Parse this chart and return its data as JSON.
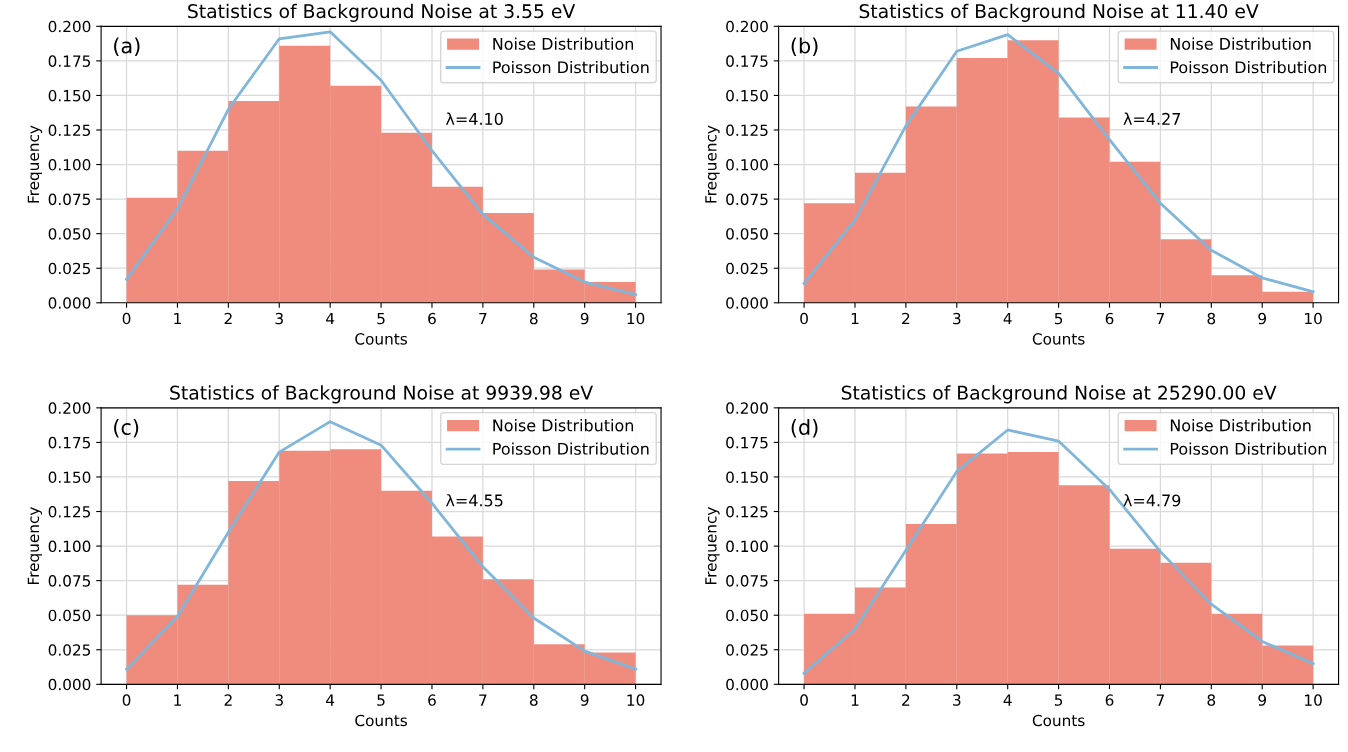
{
  "chart_data": [
    {
      "type": "histogram",
      "title": "Statistics of Background Noise at 3.55 eV",
      "xlabel": "Counts",
      "ylabel": "Frequency",
      "annotations": [
        "(a)",
        "λ=4.10"
      ],
      "bins": [
        0,
        1,
        2,
        3,
        4,
        5,
        6,
        7,
        8,
        9,
        10
      ],
      "series": [
        {
          "name": "Noise Distribution",
          "color": "#f08c7e",
          "values": [
            0.076,
            0.11,
            0.146,
            0.186,
            0.157,
            0.123,
            0.084,
            0.065,
            0.024,
            0.015
          ]
        },
        {
          "name": "Poisson Distribution",
          "type": "line",
          "color": "#7fb6d9",
          "x": [
            0,
            1,
            2,
            3,
            4,
            5,
            6,
            7,
            8,
            9,
            10
          ],
          "values": [
            0.017,
            0.068,
            0.14,
            0.191,
            0.196,
            0.161,
            0.11,
            0.064,
            0.033,
            0.015,
            0.006
          ]
        }
      ],
      "xlim": [
        -0.5,
        10.5
      ],
      "xticks": [
        0,
        1,
        2,
        3,
        4,
        5,
        6,
        7,
        8,
        9,
        10
      ],
      "ylim": [
        0,
        0.2
      ],
      "yticks": [
        {
          "value": 0,
          "label": "0.000"
        },
        {
          "value": 0.025,
          "label": "0.025"
        },
        {
          "value": 0.05,
          "label": "0.050"
        },
        {
          "value": 0.075,
          "label": "0.075"
        },
        {
          "value": 0.1,
          "label": "0.100"
        },
        {
          "value": 0.125,
          "label": "0.125"
        },
        {
          "value": 0.15,
          "label": "0.150"
        },
        {
          "value": 0.175,
          "label": "0.175"
        },
        {
          "value": 0.2,
          "label": "0.200"
        }
      ],
      "grid": true,
      "legend": "top right"
    },
    {
      "type": "histogram",
      "title": "Statistics of Background Noise at 11.40 eV",
      "xlabel": "Counts",
      "ylabel": "Frequency",
      "annotations": [
        "(b)",
        "λ=4.27"
      ],
      "bins": [
        0,
        1,
        2,
        3,
        4,
        5,
        6,
        7,
        8,
        9,
        10
      ],
      "series": [
        {
          "name": "Noise Distribution",
          "color": "#f08c7e",
          "values": [
            0.072,
            0.094,
            0.142,
            0.177,
            0.19,
            0.134,
            0.102,
            0.046,
            0.02,
            0.008
          ]
        },
        {
          "name": "Poisson Distribution",
          "type": "line",
          "color": "#7fb6d9",
          "x": [
            0,
            1,
            2,
            3,
            4,
            5,
            6,
            7,
            8,
            9,
            10
          ],
          "values": [
            0.014,
            0.06,
            0.128,
            0.182,
            0.194,
            0.166,
            0.118,
            0.072,
            0.038,
            0.018,
            0.008
          ]
        }
      ],
      "xlim": [
        -0.5,
        10.5
      ],
      "xticks": [
        0,
        1,
        2,
        3,
        4,
        5,
        6,
        7,
        8,
        9,
        10
      ],
      "ylim": [
        0,
        0.2
      ],
      "yticks": [
        {
          "value": 0,
          "label": "0.000"
        },
        {
          "value": 0.025,
          "label": "0.025"
        },
        {
          "value": 0.05,
          "label": "0.050"
        },
        {
          "value": 0.075,
          "label": "0.075"
        },
        {
          "value": 0.1,
          "label": "0.100"
        },
        {
          "value": 0.125,
          "label": "0.125"
        },
        {
          "value": 0.15,
          "label": "0.150"
        },
        {
          "value": 0.175,
          "label": "0.175"
        },
        {
          "value": 0.2,
          "label": "0.200"
        }
      ],
      "grid": true,
      "legend": "top right"
    },
    {
      "type": "histogram",
      "title": "Statistics of Background Noise at 9939.98 eV",
      "xlabel": "Counts",
      "ylabel": "Frequency",
      "annotations": [
        "(c)",
        "λ=4.55"
      ],
      "bins": [
        0,
        1,
        2,
        3,
        4,
        5,
        6,
        7,
        8,
        9,
        10
      ],
      "series": [
        {
          "name": "Noise Distribution",
          "color": "#f08c7e",
          "values": [
            0.05,
            0.072,
            0.147,
            0.169,
            0.17,
            0.14,
            0.107,
            0.076,
            0.029,
            0.023
          ]
        },
        {
          "name": "Poisson Distribution",
          "type": "line",
          "color": "#7fb6d9",
          "x": [
            0,
            1,
            2,
            3,
            4,
            5,
            6,
            7,
            8,
            9,
            10
          ],
          "values": [
            0.011,
            0.049,
            0.11,
            0.168,
            0.19,
            0.173,
            0.131,
            0.085,
            0.048,
            0.024,
            0.011
          ]
        }
      ],
      "xlim": [
        -0.5,
        10.5
      ],
      "xticks": [
        0,
        1,
        2,
        3,
        4,
        5,
        6,
        7,
        8,
        9,
        10
      ],
      "ylim": [
        0,
        0.2
      ],
      "yticks": [
        {
          "value": 0,
          "label": "0.000"
        },
        {
          "value": 0.025,
          "label": "0.025"
        },
        {
          "value": 0.05,
          "label": "0.050"
        },
        {
          "value": 0.075,
          "label": "0.075"
        },
        {
          "value": 0.1,
          "label": "0.100"
        },
        {
          "value": 0.125,
          "label": "0.125"
        },
        {
          "value": 0.15,
          "label": "0.150"
        },
        {
          "value": 0.175,
          "label": "0.175"
        },
        {
          "value": 0.2,
          "label": "0.200"
        }
      ],
      "grid": true,
      "legend": "top right"
    },
    {
      "type": "histogram",
      "title": "Statistics of Background Noise at 25290.00 eV",
      "xlabel": "Counts",
      "ylabel": "Frequency",
      "annotations": [
        "(d)",
        "λ=4.79"
      ],
      "bins": [
        0,
        1,
        2,
        3,
        4,
        5,
        6,
        7,
        8,
        9,
        10
      ],
      "series": [
        {
          "name": "Noise Distribution",
          "color": "#f08c7e",
          "values": [
            0.051,
            0.07,
            0.116,
            0.167,
            0.168,
            0.144,
            0.098,
            0.088,
            0.051,
            0.028
          ]
        },
        {
          "name": "Poisson Distribution",
          "type": "line",
          "color": "#7fb6d9",
          "x": [
            0,
            1,
            2,
            3,
            4,
            5,
            6,
            7,
            8,
            9,
            10
          ],
          "values": [
            0.008,
            0.04,
            0.097,
            0.154,
            0.184,
            0.176,
            0.141,
            0.096,
            0.058,
            0.031,
            0.015
          ]
        }
      ],
      "xlim": [
        -0.5,
        10.5
      ],
      "xticks": [
        0,
        1,
        2,
        3,
        4,
        5,
        6,
        7,
        8,
        9,
        10
      ],
      "ylim": [
        0,
        0.2
      ],
      "yticks": [
        {
          "value": 0,
          "label": "0.000"
        },
        {
          "value": 0.025,
          "label": "0.025"
        },
        {
          "value": 0.05,
          "label": "0.050"
        },
        {
          "value": 0.075,
          "label": "0.075"
        },
        {
          "value": 0.1,
          "label": "0.100"
        },
        {
          "value": 0.125,
          "label": "0.125"
        },
        {
          "value": 0.15,
          "label": "0.150"
        },
        {
          "value": 0.175,
          "label": "0.175"
        },
        {
          "value": 0.2,
          "label": "0.200"
        }
      ],
      "grid": true,
      "legend": "top right"
    }
  ]
}
